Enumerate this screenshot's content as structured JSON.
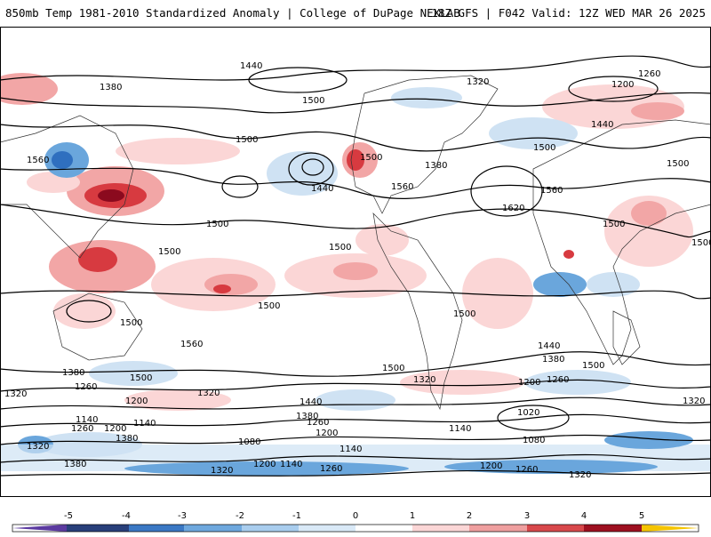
{
  "header": {
    "title_left": "850mb Temp 1981-2010 Standardized Anomaly | College of DuPage NEXLAB",
    "title_right": "18Z GFS | F042 Valid: 12Z WED MAR 26 2025"
  },
  "map": {
    "contour_labels": [
      "1440",
      "1380",
      "1500",
      "1320",
      "1260",
      "1200",
      "1560",
      "1500",
      "1440",
      "1500",
      "1380",
      "1440",
      "1500",
      "1560",
      "1620",
      "1500",
      "1500",
      "1500",
      "1500",
      "1500",
      "1500",
      "1560",
      "1500",
      "1440",
      "1380",
      "1500",
      "1320",
      "1260",
      "1200",
      "1320",
      "1380",
      "1440",
      "1500",
      "1320",
      "1200",
      "1260",
      "1320",
      "1140",
      "1260",
      "1200",
      "1380",
      "1140",
      "1080",
      "1200",
      "1260",
      "1320",
      "1380",
      "1140",
      "1020",
      "1080",
      "1140",
      "1200",
      "1260",
      "1320",
      "1380",
      "1500",
      "1560",
      "1500",
      "1500",
      "1200",
      "1140",
      "1260",
      "1320"
    ],
    "anomaly_colors": {
      "strong_warm": "#8b0a1e",
      "warm": "#d73a40",
      "mild_warm": "#f2a6a6",
      "light_warm": "#fbd6d6",
      "light_cold": "#cfe2f3",
      "cold": "#6aa6dc",
      "strong_cold": "#2f6fbf",
      "extreme": "#f5c400"
    }
  },
  "colorbar": {
    "labels": [
      "-5",
      "-4",
      "-3",
      "-2",
      "-1",
      "0",
      "1",
      "2",
      "3",
      "4",
      "5"
    ],
    "colors": [
      "#5b3aa0",
      "#283f7a",
      "#3a78c4",
      "#6ea8de",
      "#a9cdee",
      "#d9e9f7",
      "#ffffff",
      "#fbd6d6",
      "#ef9f9f",
      "#d8484b",
      "#9e1020",
      "#f5c400"
    ]
  }
}
